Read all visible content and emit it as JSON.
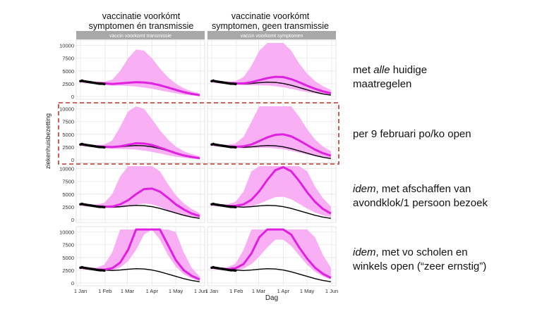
{
  "column_titles": [
    "vaccinatie voorkómt\nsymptomen én transmissie",
    "vaccinatie voorkómt\nsymptomen, geen transmissie"
  ],
  "strip_labels": [
    "vaccin voorkomt transmissie",
    "vaccin voorkomt symptomen"
  ],
  "row_labels": [
    {
      "italic": "",
      "pre": "met ",
      "em": "alle",
      "post": " huidige",
      "line2": "maatregelen"
    },
    {
      "italic": "",
      "pre": "per 9 februari po/ko open",
      "em": "",
      "post": "",
      "line2": ""
    },
    {
      "pre": "",
      "em": "idem",
      "post": ", met afschaffen van",
      "line2": "avondklok/1 persoon bezoek"
    },
    {
      "pre": "",
      "em": "idem",
      "post": ", met vo scholen en",
      "line2": "winkels open (“zeer ernstig”)"
    }
  ],
  "colors": {
    "median": "#e020e0",
    "band": "#f7a6f3",
    "baseline": "#000000",
    "observed": "#000000",
    "highlight_box": "#c0392b",
    "panel_bg": "#ffffff",
    "grid": "#e6e6e6",
    "strip": "#a8a8a8"
  },
  "chart_data": {
    "type": "line",
    "xlabel": "Dag",
    "ylabel": "ziekenhuisbezetting",
    "x_ticks": [
      "1 Jan",
      "1 Feb",
      "1 Mar",
      "1 Apr",
      "1 May",
      "1 Jun"
    ],
    "y_ticks": [
      0,
      2500,
      5000,
      7500,
      10000
    ],
    "ylim": [
      0,
      10500
    ],
    "grid": true,
    "x_days": [
      0,
      10,
      20,
      30,
      40,
      50,
      60,
      70,
      80,
      90,
      100,
      110,
      120,
      130,
      140,
      150
    ],
    "observed": {
      "x_days": [
        0,
        2,
        4,
        6,
        8,
        10,
        12,
        14,
        16,
        18,
        20,
        22,
        24,
        26,
        28,
        30
      ],
      "values": [
        3000,
        3100,
        3000,
        2950,
        2900,
        2850,
        2800,
        2750,
        2700,
        2650,
        2600,
        2550,
        2500,
        2500,
        2480,
        2450
      ]
    },
    "panels": [
      {
        "row": 1,
        "col": 1,
        "baseline": [
          3000,
          2800,
          2650,
          2550,
          2450,
          2550,
          2700,
          2800,
          2750,
          2550,
          2200,
          1750,
          1300,
          850,
          500,
          250
        ],
        "median": [
          3000,
          2800,
          2650,
          2550,
          2450,
          2550,
          2700,
          2800,
          2750,
          2550,
          2200,
          1750,
          1300,
          850,
          500,
          250
        ],
        "lower": [
          2800,
          2600,
          2450,
          2300,
          2150,
          2100,
          2050,
          1950,
          1750,
          1500,
          1200,
          900,
          600,
          350,
          200,
          100
        ],
        "upper": [
          3200,
          3000,
          2900,
          2900,
          3300,
          5000,
          7500,
          9200,
          9000,
          7500,
          5500,
          3800,
          2500,
          1600,
          1000,
          600
        ]
      },
      {
        "row": 1,
        "col": 2,
        "baseline": [
          3000,
          2800,
          2650,
          2550,
          2450,
          2550,
          2700,
          2800,
          2750,
          2550,
          2200,
          1750,
          1300,
          850,
          500,
          250
        ],
        "median": [
          3000,
          2800,
          2650,
          2550,
          2550,
          2800,
          3200,
          3600,
          3850,
          3800,
          3400,
          2800,
          2100,
          1500,
          1000,
          600
        ],
        "lower": [
          2800,
          2600,
          2450,
          2300,
          2200,
          2200,
          2200,
          2150,
          2000,
          1800,
          1500,
          1150,
          850,
          600,
          400,
          250
        ],
        "upper": [
          3200,
          3000,
          2900,
          3000,
          3800,
          6000,
          9000,
          10500,
          10500,
          10500,
          9000,
          6500,
          4500,
          3000,
          2000,
          1300
        ]
      },
      {
        "row": 2,
        "col": 1,
        "baseline": [
          3000,
          2800,
          2650,
          2550,
          2450,
          2550,
          2700,
          2800,
          2750,
          2550,
          2200,
          1750,
          1300,
          850,
          500,
          250
        ],
        "median": [
          3000,
          2800,
          2650,
          2550,
          2500,
          2650,
          2950,
          3250,
          3200,
          2900,
          2400,
          1850,
          1300,
          850,
          550,
          300
        ],
        "lower": [
          2800,
          2600,
          2450,
          2300,
          2150,
          2150,
          2100,
          2000,
          1800,
          1550,
          1250,
          900,
          600,
          400,
          250,
          150
        ],
        "upper": [
          3200,
          3000,
          2900,
          3000,
          3800,
          6500,
          9500,
          10500,
          10000,
          8000,
          5800,
          4000,
          2600,
          1700,
          1100,
          700
        ]
      },
      {
        "row": 2,
        "col": 2,
        "baseline": [
          3000,
          2800,
          2650,
          2550,
          2450,
          2550,
          2700,
          2800,
          2750,
          2550,
          2200,
          1750,
          1300,
          850,
          500,
          250
        ],
        "median": [
          3000,
          2800,
          2650,
          2550,
          2650,
          3000,
          3700,
          4400,
          4900,
          5000,
          4600,
          3800,
          2900,
          2000,
          1300,
          800
        ],
        "lower": [
          2800,
          2600,
          2450,
          2300,
          2250,
          2300,
          2350,
          2350,
          2250,
          2050,
          1750,
          1400,
          1050,
          750,
          500,
          300
        ],
        "upper": [
          3200,
          3000,
          2950,
          3200,
          4500,
          7500,
          10500,
          10500,
          10500,
          10500,
          10500,
          8500,
          6000,
          4000,
          2600,
          1700
        ]
      },
      {
        "row": 3,
        "col": 1,
        "baseline": [
          3000,
          2800,
          2650,
          2550,
          2450,
          2550,
          2700,
          2800,
          2750,
          2550,
          2200,
          1750,
          1300,
          850,
          500,
          250
        ],
        "median": [
          3000,
          2800,
          2650,
          2550,
          2550,
          3000,
          3800,
          5000,
          6000,
          6100,
          5500,
          4300,
          3000,
          2000,
          1200,
          700
        ],
        "lower": [
          2800,
          2600,
          2450,
          2300,
          2250,
          2350,
          2550,
          2900,
          3200,
          3000,
          2500,
          1800,
          1200,
          750,
          450,
          250
        ],
        "upper": [
          3200,
          3000,
          2950,
          3300,
          5000,
          8500,
          10500,
          10500,
          10500,
          10500,
          9500,
          7000,
          4800,
          3200,
          2100,
          1300
        ]
      },
      {
        "row": 3,
        "col": 2,
        "baseline": [
          3000,
          2800,
          2650,
          2550,
          2450,
          2550,
          2700,
          2800,
          2750,
          2550,
          2200,
          1750,
          1300,
          850,
          500,
          250
        ],
        "median": [
          3000,
          2800,
          2700,
          2700,
          3000,
          3900,
          5600,
          7800,
          9700,
          10300,
          9500,
          7600,
          5400,
          3500,
          2100,
          1200
        ],
        "lower": [
          2800,
          2600,
          2450,
          2350,
          2400,
          2600,
          3100,
          3800,
          4400,
          4500,
          4000,
          3100,
          2200,
          1400,
          850,
          500
        ],
        "upper": [
          3200,
          3000,
          3000,
          3500,
          5500,
          9500,
          10500,
          10500,
          10500,
          10500,
          10500,
          10500,
          9500,
          6500,
          4200,
          2600
        ]
      },
      {
        "row": 4,
        "col": 1,
        "baseline": [
          3000,
          2800,
          2650,
          2550,
          2450,
          2550,
          2700,
          2800,
          2750,
          2550,
          2200,
          1750,
          1300,
          850,
          500,
          250
        ],
        "median": [
          3000,
          2800,
          2650,
          2600,
          2900,
          4000,
          6500,
          10500,
          12500,
          12000,
          10500,
          7500,
          4500,
          2500,
          1400,
          700
        ],
        "lower": [
          2800,
          2600,
          2450,
          2350,
          2450,
          3000,
          4300,
          6500,
          9500,
          10500,
          8500,
          5500,
          3200,
          1700,
          900,
          400
        ],
        "upper": [
          3200,
          3000,
          3000,
          3600,
          6000,
          10500,
          10500,
          10500,
          10500,
          10500,
          10500,
          10500,
          10000,
          6000,
          3000,
          1300
        ]
      },
      {
        "row": 4,
        "col": 2,
        "baseline": [
          3000,
          2800,
          2650,
          2550,
          2450,
          2550,
          2700,
          2800,
          2750,
          2550,
          2200,
          1750,
          1300,
          850,
          500,
          250
        ],
        "median": [
          3000,
          2800,
          2700,
          2900,
          3700,
          5800,
          9000,
          12000,
          12500,
          11500,
          9500,
          7000,
          4800,
          3000,
          1800,
          1000
        ],
        "lower": [
          2800,
          2600,
          2450,
          2450,
          2800,
          3700,
          5200,
          7000,
          8500,
          8500,
          7300,
          5400,
          3600,
          2200,
          1300,
          700
        ],
        "upper": [
          3200,
          3000,
          3100,
          3800,
          6500,
          10500,
          10500,
          10500,
          10500,
          10500,
          10500,
          10500,
          10500,
          9000,
          5500,
          3000
        ]
      }
    ]
  }
}
